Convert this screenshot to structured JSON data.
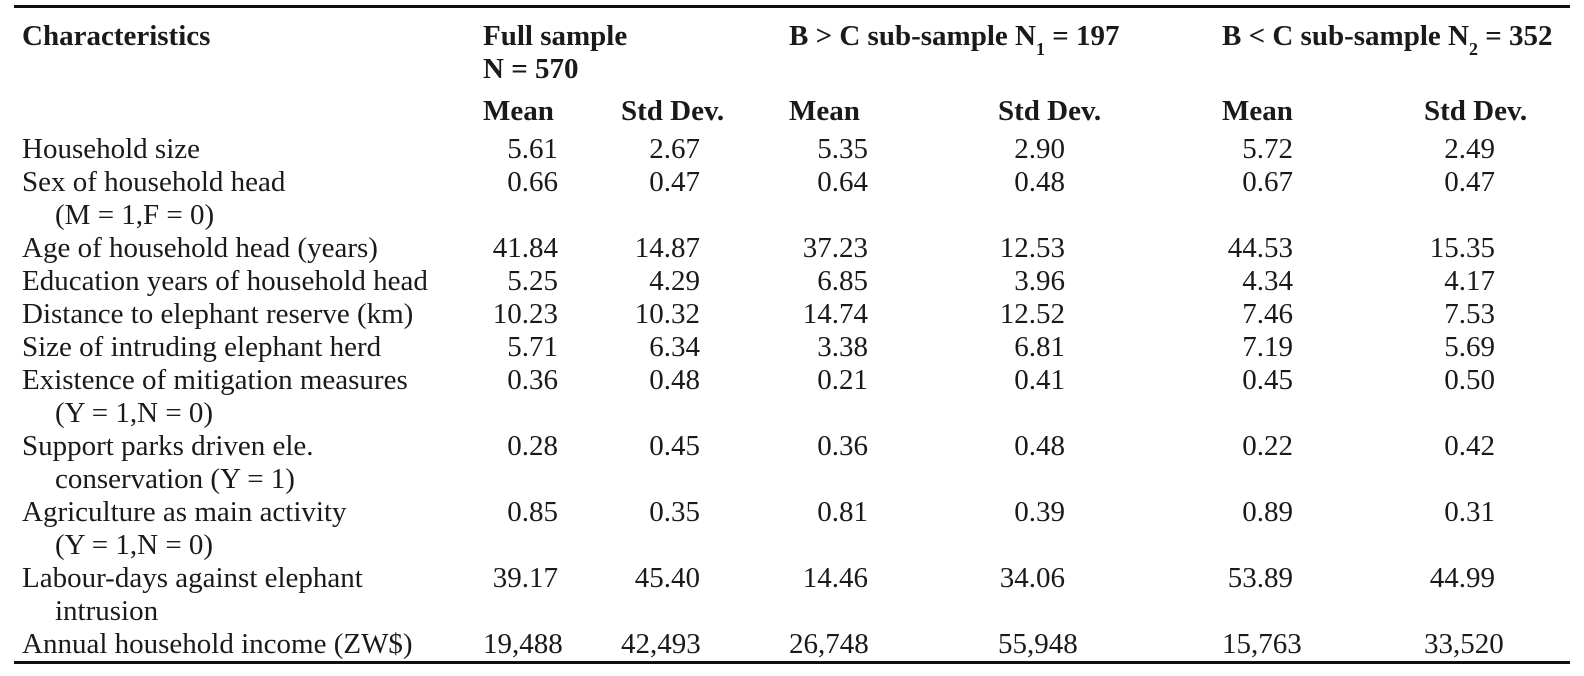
{
  "table": {
    "header": {
      "characteristics_label": "Characteristics",
      "mean_label": "Mean",
      "std_label": "Std Dev.",
      "groups": [
        {
          "line1": "Full sample",
          "line2": "N = 570"
        },
        {
          "prefix": "B > C sub-sample N",
          "sub": "1",
          "suffix": " = 197"
        },
        {
          "prefix": "B < C sub-sample N",
          "sub": "2",
          "suffix": " = 352"
        }
      ]
    },
    "rows": [
      {
        "label": "Household size",
        "label2": "",
        "values": [
          "5.61",
          "2.67",
          "5.35",
          "2.90",
          "5.72",
          "2.49"
        ]
      },
      {
        "label": "Sex of household head",
        "label2": "(M = 1,F = 0)",
        "values": [
          "0.66",
          "0.47",
          "0.64",
          "0.48",
          "0.67",
          "0.47"
        ]
      },
      {
        "label": "Age of household head (years)",
        "label2": "",
        "values": [
          "41.84",
          "14.87",
          "37.23",
          "12.53",
          "44.53",
          "15.35"
        ]
      },
      {
        "label": "Education years of household head",
        "label2": "",
        "values": [
          "5.25",
          "4.29",
          "6.85",
          "3.96",
          "4.34",
          "4.17"
        ]
      },
      {
        "label": "Distance to elephant reserve (km)",
        "label2": "",
        "values": [
          "10.23",
          "10.32",
          "14.74",
          "12.52",
          "7.46",
          "7.53"
        ]
      },
      {
        "label": "Size of intruding elephant herd",
        "label2": "",
        "values": [
          "5.71",
          "6.34",
          "3.38",
          "6.81",
          "7.19",
          "5.69"
        ]
      },
      {
        "label": "Existence of mitigation measures",
        "label2": "(Y = 1,N = 0)",
        "values": [
          "0.36",
          "0.48",
          "0.21",
          "0.41",
          "0.45",
          "0.50"
        ]
      },
      {
        "label": "Support parks driven ele.",
        "label2": "conservation (Y = 1)",
        "values": [
          "0.28",
          "0.45",
          "0.36",
          "0.48",
          "0.22",
          "0.42"
        ]
      },
      {
        "label": "Agriculture as main activity",
        "label2": "(Y = 1,N = 0)",
        "values": [
          "0.85",
          "0.35",
          "0.81",
          "0.39",
          "0.89",
          "0.31"
        ]
      },
      {
        "label": "Labour-days against elephant",
        "label2": "intrusion",
        "values": [
          "39.17",
          "45.40",
          "14.46",
          "34.06",
          "53.89",
          "44.99"
        ]
      },
      {
        "label": "Annual household income (ZW$)",
        "label2": "",
        "values": [
          "19,488",
          "42,493",
          "26,748",
          "55,948",
          "15,763",
          "33,520"
        ]
      }
    ]
  }
}
